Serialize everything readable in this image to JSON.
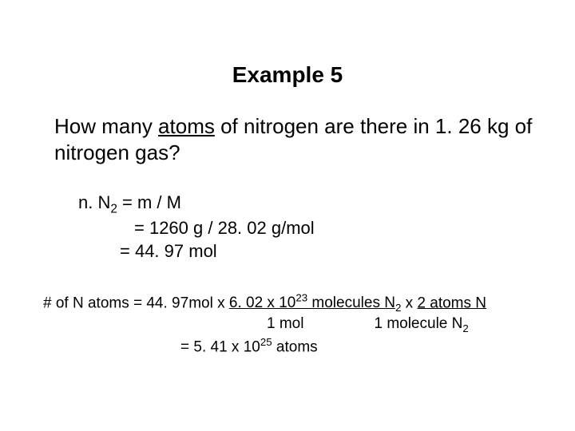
{
  "title": "Example 5",
  "question": {
    "pre": "How many ",
    "underlined": "atoms",
    "post": " of nitrogen are there in 1. 26 kg of nitrogen gas?"
  },
  "calc1": {
    "l1_pre": "n. N",
    "l1_sub": "2",
    "l1_post": " = m / M",
    "l2": "= 1260 g / 28. 02 g/mol",
    "l3": "= 44. 97 mol"
  },
  "calc2": {
    "l1_a": "# of N atoms = 44. 97mol x ",
    "l1_u1_a": "6. 02 x 10",
    "l1_u1_sup": "23",
    "l1_u1_b": " molecules N",
    "l1_sub1": "2",
    "l1_mid": "  x ",
    "l1_u2": "2 atoms N",
    "l2_a": "1 mol",
    "l2_b_pre": "1 molecule N",
    "l2_b_sub": "2",
    "l3_a": "= 5. 41 x 10",
    "l3_sup": "25",
    "l3_b": " atoms"
  },
  "style": {
    "background": "#ffffff",
    "text_color": "#000000",
    "title_fontsize": 28,
    "body_fontsize": 26,
    "calc_fontsize": 22,
    "calc2_fontsize": 19
  }
}
